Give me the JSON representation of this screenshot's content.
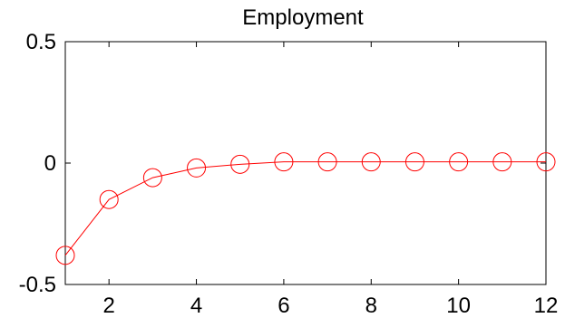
{
  "chart_data": {
    "type": "line",
    "title": "Employment",
    "xlabel": "",
    "ylabel": "",
    "xlim": [
      1,
      12
    ],
    "ylim": [
      -0.5,
      0.5
    ],
    "xticks": [
      2,
      4,
      6,
      8,
      10,
      12
    ],
    "yticks": [
      -0.5,
      0,
      0.5
    ],
    "xtick_labels": [
      "2",
      "4",
      "6",
      "8",
      "10",
      "12"
    ],
    "ytick_labels": [
      "-0.5",
      "0",
      "0.5"
    ],
    "grid": false,
    "series": [
      {
        "color": "#ff0000",
        "marker": "open-circle",
        "x": [
          1,
          2,
          3,
          4,
          5,
          6,
          7,
          8,
          9,
          10,
          11,
          12
        ],
        "y": [
          -0.38,
          -0.15,
          -0.06,
          -0.02,
          -0.005,
          0.005,
          0.005,
          0.005,
          0.005,
          0.005,
          0.005,
          0.005
        ]
      }
    ]
  }
}
